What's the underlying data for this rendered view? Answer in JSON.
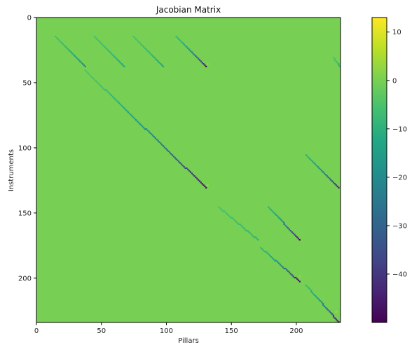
{
  "chart_data": {
    "type": "heatmap",
    "title": "Jacobian Matrix",
    "xlabel": "Pillars",
    "ylabel": "Instruments",
    "xlim": [
      0,
      234
    ],
    "ylim": [
      234,
      0
    ],
    "x_ticks": [
      0,
      50,
      100,
      150,
      200
    ],
    "y_ticks": [
      0,
      50,
      100,
      150,
      200
    ],
    "x_tick_labels": [
      "0",
      "50",
      "100",
      "150",
      "200"
    ],
    "y_tick_labels": [
      "0",
      "50",
      "100",
      "150",
      "200"
    ],
    "background_value": 0,
    "colorbar": {
      "colormap": "viridis",
      "vmin": -50,
      "vmax": 13,
      "ticks": [
        10,
        0,
        -10,
        -20,
        -30,
        -40
      ],
      "tick_labels": [
        "10",
        "0",
        "−10",
        "−20",
        "−30",
        "−40"
      ]
    },
    "diagonals": [
      {
        "x_start": 14,
        "y_start": 14,
        "x_end": 37,
        "y_end": 37,
        "v_start": -6,
        "v_end": -22
      },
      {
        "x_start": 44,
        "y_start": 14,
        "x_end": 67,
        "y_end": 37,
        "v_start": -6,
        "v_end": -14
      },
      {
        "x_start": 74,
        "y_start": 14,
        "x_end": 97,
        "y_end": 37,
        "v_start": -6,
        "v_end": -14
      },
      {
        "x_start": 107,
        "y_start": 14,
        "x_end": 130,
        "y_end": 37,
        "v_start": -8,
        "v_end": -48
      },
      {
        "x_start": 37,
        "y_start": 40,
        "x_end": 130,
        "y_end": 130,
        "v_start": -5,
        "v_end": -48
      },
      {
        "x_start": 140,
        "y_start": 145,
        "x_end": 170,
        "y_end": 170,
        "v_start": -6,
        "v_end": -10
      },
      {
        "x_start": 178,
        "y_start": 145,
        "x_end": 202,
        "y_end": 170,
        "v_start": -10,
        "v_end": -48
      },
      {
        "x_start": 172,
        "y_start": 176,
        "x_end": 202,
        "y_end": 202,
        "v_start": -8,
        "v_end": -48
      },
      {
        "x_start": 207,
        "y_start": 205,
        "x_end": 232,
        "y_end": 233,
        "v_start": -8,
        "v_end": -48
      },
      {
        "x_start": 207,
        "y_start": 105,
        "x_end": 232,
        "y_end": 130,
        "v_start": -10,
        "v_end": -45
      },
      {
        "x_start": 228,
        "y_start": 30,
        "x_end": 233,
        "y_end": 37,
        "v_start": -5,
        "v_end": -12
      }
    ],
    "faint_points": [
      {
        "x": 131,
        "y": 128,
        "v": 4
      },
      {
        "x": 131,
        "y": 35,
        "v": 3
      },
      {
        "x": 202,
        "y": 198,
        "v": 3
      },
      {
        "x": 230,
        "y": 225,
        "v": 4
      }
    ]
  }
}
